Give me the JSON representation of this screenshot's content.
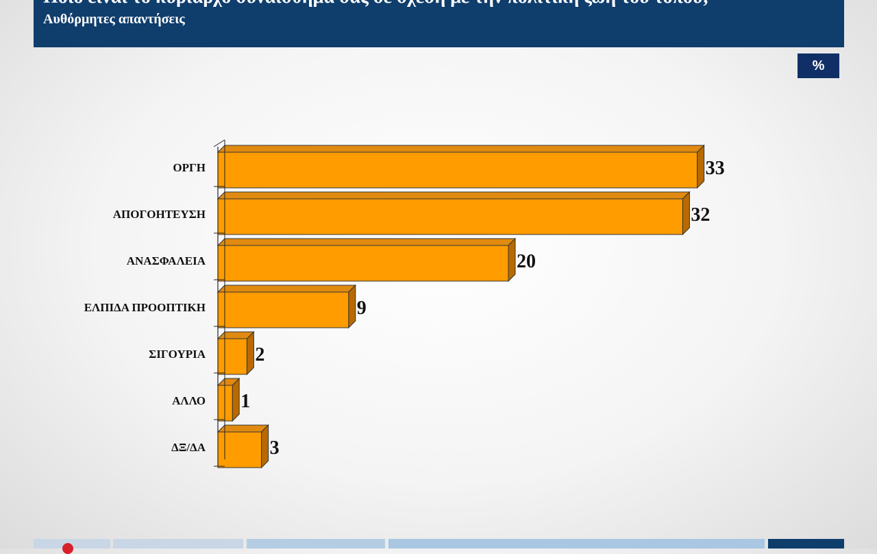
{
  "header": {
    "title": "Ποιο είναι το κυρίαρχο συναίσθημα σας σε σχέση με την πολιτική ζωή του τόπου;",
    "subtitle": "Αυθόρμητες απαντήσεις"
  },
  "unit_badge": "%",
  "colors": {
    "header_bg": "#0f3d6c",
    "bar_front": "#ff9c00",
    "bar_top": "#e08a10",
    "bar_side": "#b86a00",
    "badge_bg": "#0f2f66"
  },
  "chart_data": {
    "type": "bar",
    "orientation": "horizontal",
    "style": "3d",
    "categories": [
      "ΟΡΓΗ",
      "ΑΠΟΓΟΗΤΕΥΣΗ",
      "ΑΝΑΣΦΑΛΕΙΑ",
      "ΕΛΠΙΔΑ ΠΡΟΟΠΤΙΚΗ",
      "ΣΙΓΟΥΡΙΑ",
      "ΑΛΛΟ",
      "ΔΞ/ΔΑ"
    ],
    "values": [
      33,
      32,
      20,
      9,
      2,
      1,
      3
    ],
    "data_labels": [
      "33",
      "32",
      "20",
      "9",
      "2",
      "1",
      "3"
    ],
    "xlim": [
      0,
      35
    ],
    "grid": false,
    "legend": "none"
  }
}
